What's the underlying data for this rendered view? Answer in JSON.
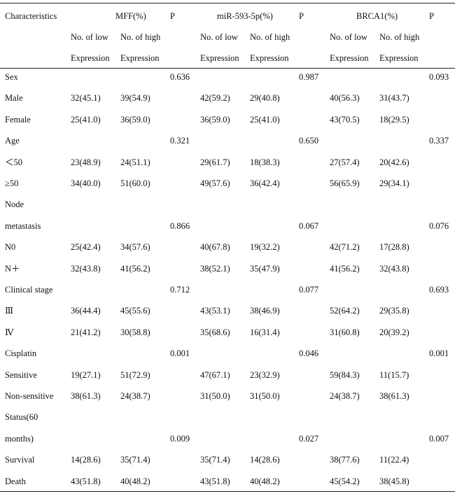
{
  "header": {
    "characteristics": "Characteristics",
    "groups": [
      {
        "name": "MFF(%)",
        "low_line1": "No. of low",
        "low_line2": "Expression",
        "high_line1": "No. of high",
        "high_line2": "Expression",
        "p": "P"
      },
      {
        "name": "miR-593-5p(%)",
        "low_line1": "No. of low",
        "low_line2": "Expression",
        "high_line1": "No. of high",
        "high_line2": "Expression",
        "p": "P"
      },
      {
        "name": "BRCA1(%)",
        "low_line1": "No. of low",
        "low_line2": "Expression",
        "high_line1": "No. of high",
        "high_line2": "Expression",
        "p": "P"
      }
    ]
  },
  "rows": [
    {
      "label": "Sex",
      "cells": [
        "",
        "",
        "0.636",
        "",
        "",
        "0.987",
        "",
        "",
        "0.093"
      ]
    },
    {
      "label": "Male",
      "cells": [
        "32(45.1)",
        "39(54.9)",
        "",
        "42(59.2)",
        "29(40.8)",
        "",
        "40(56.3)",
        "31(43.7)",
        ""
      ]
    },
    {
      "label": "Female",
      "cells": [
        "25(41.0)",
        "36(59.0)",
        "",
        "36(59.0)",
        "25(41.0)",
        "",
        "43(70.5)",
        "18(29.5)",
        ""
      ]
    },
    {
      "label": "Age",
      "cells": [
        "",
        "",
        "0.321",
        "",
        "",
        "0.650",
        "",
        "",
        "0.337"
      ]
    },
    {
      "label": "＜50",
      "cells": [
        "23(48.9)",
        "24(51.1)",
        "",
        "29(61.7)",
        "18(38.3)",
        "",
        "27(57.4)",
        "20(42.6)",
        ""
      ]
    },
    {
      "label": "≥50",
      "cells": [
        "34(40.0)",
        "51(60.0)",
        "",
        "49(57.6)",
        "36(42.4)",
        "",
        "56(65.9)",
        "29(34.1)",
        ""
      ]
    },
    {
      "label": "Node",
      "cells": [
        "",
        "",
        "",
        "",
        "",
        "",
        "",
        "",
        ""
      ]
    },
    {
      "label": "metastasis",
      "cells": [
        "",
        "",
        "0.866",
        "",
        "",
        "0.067",
        "",
        "",
        "0.076"
      ]
    },
    {
      "label": "N0",
      "cells": [
        "25(42.4)",
        "34(57.6)",
        "",
        "40(67.8)",
        "19(32.2)",
        "",
        "42(71.2)",
        "17(28.8)",
        ""
      ]
    },
    {
      "label": "N＋",
      "cells": [
        "32(43.8)",
        "41(56.2)",
        "",
        "38(52.1)",
        "35(47.9)",
        "",
        "41(56.2)",
        "32(43.8)",
        ""
      ]
    },
    {
      "label": "Clinical stage",
      "cells": [
        "",
        "",
        "0.712",
        "",
        "",
        "0.077",
        "",
        "",
        "0.693"
      ]
    },
    {
      "label": "Ⅲ",
      "cells": [
        "36(44.4)",
        "45(55.6)",
        "",
        "43(53.1)",
        "38(46.9)",
        "",
        "52(64.2)",
        "29(35.8)",
        ""
      ]
    },
    {
      "label": "Ⅳ",
      "cells": [
        "21(41.2)",
        "30(58.8)",
        "",
        "35(68.6)",
        "16(31.4)",
        "",
        "31(60.8)",
        "20(39.2)",
        ""
      ]
    },
    {
      "label": "Cisplatin",
      "cells": [
        "",
        "",
        "0.001",
        "",
        "",
        "0.046",
        "",
        "",
        "0.001"
      ]
    },
    {
      "label": "Sensitive",
      "cells": [
        "19(27.1)",
        "51(72.9)",
        "",
        "47(67.1)",
        "23(32.9)",
        "",
        "59(84.3)",
        "11(15.7)",
        ""
      ]
    },
    {
      "label": "Non-sensitive",
      "cells": [
        "38(61.3)",
        "24(38.7)",
        "",
        "31(50.0)",
        "31(50.0)",
        "",
        "24(38.7)",
        "38(61.3)",
        ""
      ]
    },
    {
      "label": "Status(60",
      "cells": [
        "",
        "",
        "",
        "",
        "",
        "",
        "",
        "",
        ""
      ]
    },
    {
      "label": "months)",
      "cells": [
        "",
        "",
        "0.009",
        "",
        "",
        "0.027",
        "",
        "",
        "0.007"
      ]
    },
    {
      "label": "Survival",
      "cells": [
        "14(28.6)",
        "35(71.4)",
        "",
        "35(71.4)",
        "14(28.6)",
        "",
        "38(77.6)",
        "11(22.4)",
        ""
      ]
    },
    {
      "label": "Death",
      "cells": [
        "43(51.8)",
        "40(48.2)",
        "",
        "43(51.8)",
        "40(48.2)",
        "",
        "45(54.2)",
        "38(45.8)",
        ""
      ]
    }
  ]
}
